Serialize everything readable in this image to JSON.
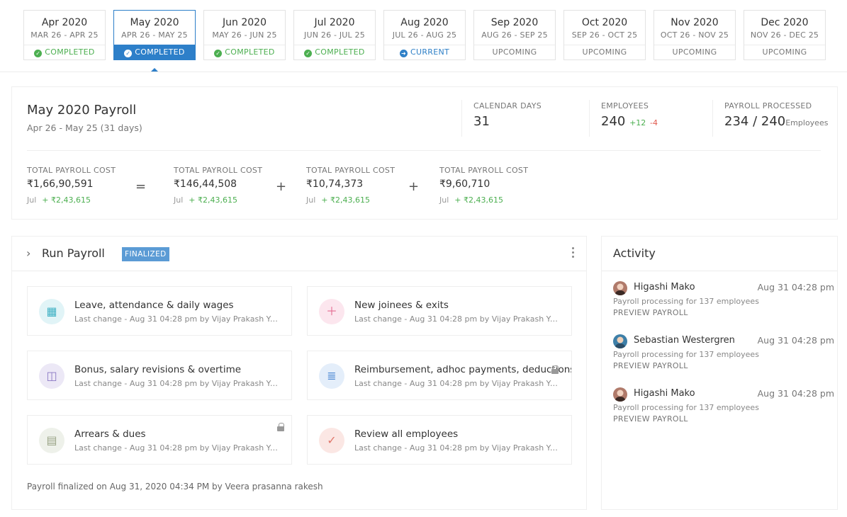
{
  "months": [
    {
      "name": "Apr 2020",
      "range": "MAR 26 - APR 25",
      "status": "COMPLETED"
    },
    {
      "name": "May 2020",
      "range": "APR 26 - MAY 25",
      "status": "COMPLETED"
    },
    {
      "name": "Jun 2020",
      "range": "MAY 26 - JUN 25",
      "status": "COMPLETED"
    },
    {
      "name": "Jul 2020",
      "range": "JUN 26 - JUL 25",
      "status": "COMPLETED"
    },
    {
      "name": "Aug 2020",
      "range": "JUL 26 - AUG 25",
      "status": "CURRENT"
    },
    {
      "name": "Sep 2020",
      "range": "AUG 26 - SEP 25",
      "status": "UPCOMING"
    },
    {
      "name": "Oct 2020",
      "range": "SEP 26 - OCT 25",
      "status": "UPCOMING"
    },
    {
      "name": "Nov 2020",
      "range": "OCT 26 - NOV 25",
      "status": "UPCOMING"
    },
    {
      "name": "Dec 2020",
      "range": "NOV 26 - DEC 25",
      "status": "UPCOMING"
    }
  ],
  "summary": {
    "title": "May 2020 Payroll",
    "subtitle": "Apr 26 - May 25 (31 days)",
    "calendar_days": {
      "label": "CALENDAR DAYS",
      "value": "31"
    },
    "employees": {
      "label": "EMPLOYEES",
      "value": "240",
      "plus": "+12",
      "minus": "-4"
    },
    "processed": {
      "label": "PAYROLL PROCESSED",
      "value": "234 / 240",
      "unit": "Employees"
    },
    "costs": [
      {
        "label": "TOTAL PAYROLL COST",
        "value": "₹1,66,90,591",
        "month": "Jul",
        "delta": "+ ₹2,43,615"
      },
      {
        "label": "TOTAL PAYROLL COST",
        "value": "₹146,44,508",
        "month": "Jul",
        "delta": "+ ₹2,43,615"
      },
      {
        "label": "TOTAL PAYROLL COST",
        "value": "₹10,74,373",
        "month": "Jul",
        "delta": "+ ₹2,43,615"
      },
      {
        "label": "TOTAL PAYROLL COST",
        "value": "₹9,60,710",
        "month": "Jul",
        "delta": "+ ₹2,43,615"
      }
    ],
    "ops": [
      "=",
      "+",
      "+"
    ]
  },
  "run_payroll": {
    "title": "Run Payroll",
    "badge": "FINALIZED",
    "tasks": [
      {
        "title": "Leave, attendance & daily wages",
        "sub": "Last change - Aug 31 04:28 pm by Vijay Prakash Yalamanchili",
        "icon": "calendar-icon"
      },
      {
        "title": "New joinees & exits",
        "sub": "Last change - Aug 31 04:28 pm by Vijay Prakash Yalamanchili",
        "icon": "user-plus-icon"
      },
      {
        "title": "Bonus, salary revisions & overtime",
        "sub": "Last change - Aug 31 04:28 pm by Vijay Prakash Yalamanchili",
        "icon": "gift-icon"
      },
      {
        "title": "Reimbursement, adhoc payments, deductions",
        "sub": "Last change - Aug 31 04:28 pm by Vijay Prakash Yalamanchili",
        "icon": "document-icon"
      },
      {
        "title": "Arrears & dues",
        "sub": "Last change - Aug 31 04:28 pm by Vijay Prakash Yalamanchili",
        "icon": "calculator-icon"
      },
      {
        "title": "Review all employees",
        "sub": "Last change - Aug 31 04:28 pm by Vijay Prakash Yalamanchili",
        "icon": "user-check-icon"
      }
    ],
    "footer": "Payroll finalized on Aug 31, 2020 04:34 PM by Veera prasanna rakesh"
  },
  "activity": {
    "title": "Activity",
    "items": [
      {
        "name": "Higashi Mako",
        "time": "Aug 31 04:28 pm",
        "desc": "Payroll processing for 137 employees",
        "link": "PREVIEW PAYROLL"
      },
      {
        "name": "Sebastian Westergren",
        "time": "Aug 31 04:28 pm",
        "desc": "Payroll processing for 137 employees",
        "link": "PREVIEW PAYROLL"
      },
      {
        "name": "Higashi Mako",
        "time": "Aug 31 04:28 pm",
        "desc": "Payroll processing for 137 employees",
        "link": "PREVIEW PAYROLL"
      }
    ]
  },
  "colors": {
    "primary": "#2d7fc9",
    "success": "#4caf50",
    "danger": "#e05a4e"
  }
}
